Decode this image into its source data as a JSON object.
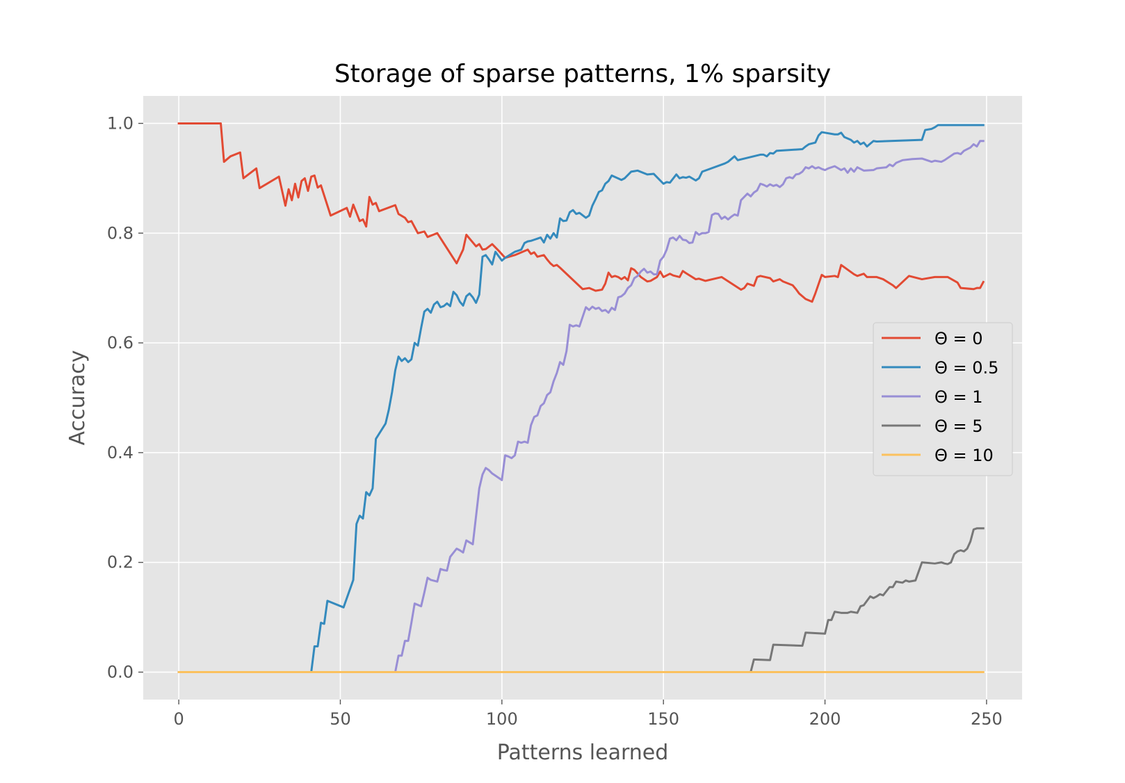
{
  "chart_data": {
    "type": "line",
    "title": "Storage of sparse patterns, 1% sparsity",
    "xlabel": "Patterns learned",
    "ylabel": "Accuracy",
    "xlim": [
      -11,
      261
    ],
    "ylim": [
      -0.05,
      1.05
    ],
    "xticks": [
      0,
      50,
      100,
      150,
      200,
      250
    ],
    "yticks": [
      0.0,
      0.2,
      0.4,
      0.6,
      0.8,
      1.0
    ],
    "xtick_labels": [
      "0",
      "50",
      "100",
      "150",
      "200",
      "250"
    ],
    "ytick_labels": [
      "0.0",
      "0.2",
      "0.4",
      "0.6",
      "0.8",
      "1.0"
    ],
    "grid": true,
    "legend_position": "center-right",
    "background": "#e5e5e5",
    "series": [
      {
        "name": "Θ = 0",
        "color": "#e24a33",
        "x": [
          0,
          13,
          14,
          16,
          19,
          20,
          24,
          25,
          31,
          33,
          34,
          35,
          36,
          37,
          38,
          39,
          40,
          41,
          42,
          43,
          44,
          47,
          52,
          53,
          54,
          56,
          57,
          58,
          59,
          60,
          61,
          62,
          67,
          68,
          70,
          71,
          72,
          74,
          76,
          77,
          80,
          86,
          88,
          89,
          92,
          93,
          94,
          95,
          97,
          99,
          101,
          104,
          108,
          109,
          110,
          111,
          113,
          114,
          115,
          116,
          117,
          118,
          125,
          127,
          129,
          131,
          132,
          133,
          134,
          135,
          136,
          137,
          138,
          139,
          140,
          141,
          143,
          145,
          146,
          148,
          149,
          150,
          152,
          153,
          155,
          156,
          157,
          160,
          161,
          163,
          168,
          174,
          175,
          176,
          178,
          179,
          180,
          183,
          184,
          186,
          187,
          190,
          191,
          192,
          194,
          196,
          197,
          199,
          200,
          203,
          204,
          205,
          209,
          210,
          212,
          213,
          216,
          218,
          221,
          222,
          226,
          230,
          234,
          238,
          241,
          242,
          246,
          247,
          248,
          249
        ],
        "y": [
          1.0,
          1.0,
          0.93,
          0.94,
          0.947,
          0.9,
          0.918,
          0.882,
          0.903,
          0.85,
          0.88,
          0.86,
          0.89,
          0.865,
          0.895,
          0.9,
          0.877,
          0.903,
          0.905,
          0.883,
          0.887,
          0.832,
          0.846,
          0.83,
          0.852,
          0.822,
          0.825,
          0.812,
          0.866,
          0.852,
          0.855,
          0.84,
          0.851,
          0.835,
          0.828,
          0.82,
          0.822,
          0.8,
          0.803,
          0.793,
          0.8,
          0.745,
          0.77,
          0.797,
          0.776,
          0.78,
          0.77,
          0.771,
          0.78,
          0.768,
          0.755,
          0.76,
          0.77,
          0.762,
          0.765,
          0.757,
          0.76,
          0.752,
          0.745,
          0.74,
          0.742,
          0.737,
          0.698,
          0.7,
          0.695,
          0.697,
          0.708,
          0.728,
          0.72,
          0.722,
          0.72,
          0.716,
          0.72,
          0.714,
          0.736,
          0.733,
          0.72,
          0.712,
          0.713,
          0.72,
          0.73,
          0.72,
          0.726,
          0.723,
          0.72,
          0.731,
          0.727,
          0.716,
          0.717,
          0.713,
          0.72,
          0.697,
          0.7,
          0.708,
          0.704,
          0.72,
          0.722,
          0.718,
          0.712,
          0.716,
          0.712,
          0.705,
          0.698,
          0.69,
          0.68,
          0.675,
          0.69,
          0.724,
          0.72,
          0.722,
          0.72,
          0.742,
          0.725,
          0.722,
          0.726,
          0.72,
          0.72,
          0.716,
          0.705,
          0.7,
          0.722,
          0.716,
          0.72,
          0.72,
          0.71,
          0.7,
          0.698,
          0.7,
          0.7,
          0.711
        ]
      },
      {
        "name": "Θ = 0.5",
        "color": "#348abd",
        "x": [
          0,
          41,
          42,
          43,
          44,
          45,
          46,
          51,
          54,
          55,
          56,
          57,
          58,
          59,
          60,
          61,
          64,
          65,
          66,
          67,
          68,
          69,
          70,
          71,
          72,
          73,
          74,
          75,
          76,
          77,
          78,
          79,
          80,
          81,
          82,
          83,
          84,
          85,
          86,
          87,
          88,
          89,
          90,
          91,
          92,
          93,
          94,
          95,
          96,
          97,
          98,
          100,
          101,
          104,
          105,
          106,
          107,
          108,
          109,
          110,
          111,
          112,
          113,
          114,
          115,
          116,
          117,
          118,
          119,
          120,
          121,
          122,
          123,
          124,
          126,
          127,
          128,
          129,
          130,
          131,
          132,
          133,
          134,
          137,
          138,
          140,
          141,
          142,
          145,
          147,
          148,
          150,
          151,
          152,
          154,
          155,
          156,
          157,
          158,
          160,
          161,
          162,
          169,
          170,
          172,
          173,
          180,
          181,
          182,
          183,
          184,
          185,
          193,
          194,
          195,
          197,
          198,
          199,
          203,
          204,
          205,
          206,
          208,
          209,
          210,
          211,
          212,
          213,
          214,
          215,
          216,
          230,
          231,
          233,
          234,
          235,
          249
        ],
        "y": [
          0.0,
          0.0,
          0.047,
          0.047,
          0.09,
          0.088,
          0.13,
          0.118,
          0.168,
          0.27,
          0.285,
          0.28,
          0.328,
          0.322,
          0.335,
          0.425,
          0.453,
          0.478,
          0.51,
          0.55,
          0.575,
          0.567,
          0.572,
          0.565,
          0.57,
          0.6,
          0.595,
          0.627,
          0.657,
          0.662,
          0.655,
          0.67,
          0.675,
          0.665,
          0.667,
          0.672,
          0.667,
          0.693,
          0.687,
          0.675,
          0.668,
          0.685,
          0.69,
          0.683,
          0.673,
          0.688,
          0.757,
          0.76,
          0.752,
          0.743,
          0.766,
          0.75,
          0.755,
          0.766,
          0.768,
          0.77,
          0.782,
          0.785,
          0.786,
          0.788,
          0.79,
          0.792,
          0.783,
          0.797,
          0.79,
          0.8,
          0.792,
          0.827,
          0.822,
          0.823,
          0.838,
          0.842,
          0.835,
          0.837,
          0.828,
          0.832,
          0.85,
          0.862,
          0.875,
          0.878,
          0.89,
          0.895,
          0.905,
          0.897,
          0.9,
          0.912,
          0.913,
          0.914,
          0.907,
          0.908,
          0.902,
          0.89,
          0.893,
          0.892,
          0.907,
          0.9,
          0.902,
          0.901,
          0.903,
          0.896,
          0.9,
          0.912,
          0.927,
          0.93,
          0.94,
          0.933,
          0.943,
          0.943,
          0.94,
          0.946,
          0.945,
          0.95,
          0.953,
          0.958,
          0.962,
          0.965,
          0.978,
          0.984,
          0.98,
          0.98,
          0.983,
          0.975,
          0.97,
          0.965,
          0.968,
          0.962,
          0.965,
          0.958,
          0.963,
          0.968,
          0.967,
          0.97,
          0.988,
          0.99,
          0.993,
          0.997,
          0.997
        ]
      },
      {
        "name": "Θ = 1",
        "color": "#988ed5",
        "x": [
          0,
          67,
          68,
          69,
          70,
          71,
          72,
          73,
          75,
          76,
          77,
          78,
          80,
          81,
          82,
          83,
          84,
          86,
          87,
          88,
          89,
          91,
          93,
          94,
          95,
          96,
          97,
          98,
          100,
          101,
          102,
          103,
          104,
          105,
          106,
          107,
          108,
          109,
          110,
          111,
          112,
          113,
          114,
          115,
          116,
          117,
          118,
          119,
          120,
          121,
          122,
          123,
          124,
          126,
          127,
          128,
          129,
          130,
          131,
          132,
          133,
          134,
          135,
          136,
          137,
          138,
          139,
          140,
          141,
          142,
          143,
          144,
          145,
          146,
          147,
          148,
          149,
          150,
          151,
          152,
          153,
          154,
          155,
          156,
          157,
          158,
          159,
          160,
          161,
          162,
          163,
          164,
          165,
          166,
          167,
          168,
          169,
          170,
          171,
          172,
          173,
          174,
          175,
          176,
          177,
          178,
          179,
          180,
          181,
          182,
          183,
          184,
          185,
          186,
          187,
          188,
          189,
          190,
          191,
          192,
          193,
          194,
          195,
          196,
          197,
          198,
          199,
          200,
          201,
          203,
          205,
          206,
          207,
          208,
          209,
          210,
          211,
          212,
          215,
          216,
          219,
          220,
          221,
          222,
          224,
          227,
          230,
          233,
          234,
          236,
          237,
          240,
          241,
          242,
          243,
          244,
          245,
          246,
          247,
          248,
          249
        ],
        "y": [
          0.0,
          0.0,
          0.03,
          0.03,
          0.057,
          0.057,
          0.09,
          0.125,
          0.12,
          0.145,
          0.172,
          0.168,
          0.165,
          0.188,
          0.186,
          0.185,
          0.21,
          0.225,
          0.222,
          0.218,
          0.24,
          0.233,
          0.335,
          0.36,
          0.372,
          0.368,
          0.362,
          0.358,
          0.35,
          0.395,
          0.393,
          0.39,
          0.395,
          0.42,
          0.418,
          0.42,
          0.418,
          0.45,
          0.465,
          0.468,
          0.485,
          0.49,
          0.505,
          0.51,
          0.53,
          0.545,
          0.565,
          0.56,
          0.585,
          0.633,
          0.63,
          0.632,
          0.63,
          0.665,
          0.66,
          0.666,
          0.662,
          0.664,
          0.658,
          0.66,
          0.655,
          0.664,
          0.66,
          0.683,
          0.685,
          0.69,
          0.7,
          0.705,
          0.718,
          0.722,
          0.73,
          0.735,
          0.728,
          0.73,
          0.725,
          0.725,
          0.75,
          0.757,
          0.77,
          0.79,
          0.792,
          0.787,
          0.795,
          0.788,
          0.787,
          0.782,
          0.783,
          0.802,
          0.797,
          0.8,
          0.8,
          0.802,
          0.833,
          0.836,
          0.835,
          0.826,
          0.83,
          0.825,
          0.83,
          0.834,
          0.832,
          0.86,
          0.866,
          0.872,
          0.867,
          0.874,
          0.878,
          0.89,
          0.888,
          0.885,
          0.889,
          0.886,
          0.888,
          0.884,
          0.889,
          0.9,
          0.902,
          0.9,
          0.907,
          0.908,
          0.912,
          0.92,
          0.918,
          0.922,
          0.918,
          0.92,
          0.917,
          0.915,
          0.918,
          0.922,
          0.915,
          0.918,
          0.91,
          0.918,
          0.912,
          0.92,
          0.917,
          0.914,
          0.915,
          0.918,
          0.92,
          0.925,
          0.922,
          0.928,
          0.933,
          0.935,
          0.936,
          0.93,
          0.932,
          0.93,
          0.933,
          0.945,
          0.946,
          0.944,
          0.95,
          0.953,
          0.956,
          0.962,
          0.958,
          0.968,
          0.968
        ]
      },
      {
        "name": "Θ = 5",
        "color": "#777777",
        "x": [
          0,
          177,
          178,
          183,
          184,
          193,
          194,
          200,
          201,
          202,
          203,
          205,
          207,
          208,
          210,
          211,
          212,
          214,
          215,
          216,
          217,
          218,
          220,
          221,
          222,
          224,
          225,
          226,
          228,
          230,
          234,
          236,
          237,
          238,
          239,
          240,
          241,
          242,
          243,
          244,
          245,
          246,
          247,
          248,
          249
        ],
        "y": [
          0.0,
          0.0,
          0.023,
          0.022,
          0.05,
          0.048,
          0.072,
          0.07,
          0.095,
          0.095,
          0.11,
          0.108,
          0.108,
          0.11,
          0.108,
          0.12,
          0.122,
          0.138,
          0.135,
          0.138,
          0.142,
          0.14,
          0.155,
          0.155,
          0.165,
          0.163,
          0.167,
          0.165,
          0.167,
          0.2,
          0.198,
          0.2,
          0.198,
          0.197,
          0.2,
          0.215,
          0.22,
          0.222,
          0.22,
          0.225,
          0.238,
          0.26,
          0.262,
          0.262,
          0.262
        ]
      },
      {
        "name": "Θ = 10",
        "color": "#fbc15e",
        "x": [
          0,
          249
        ],
        "y": [
          0.0,
          0.0
        ]
      }
    ]
  }
}
